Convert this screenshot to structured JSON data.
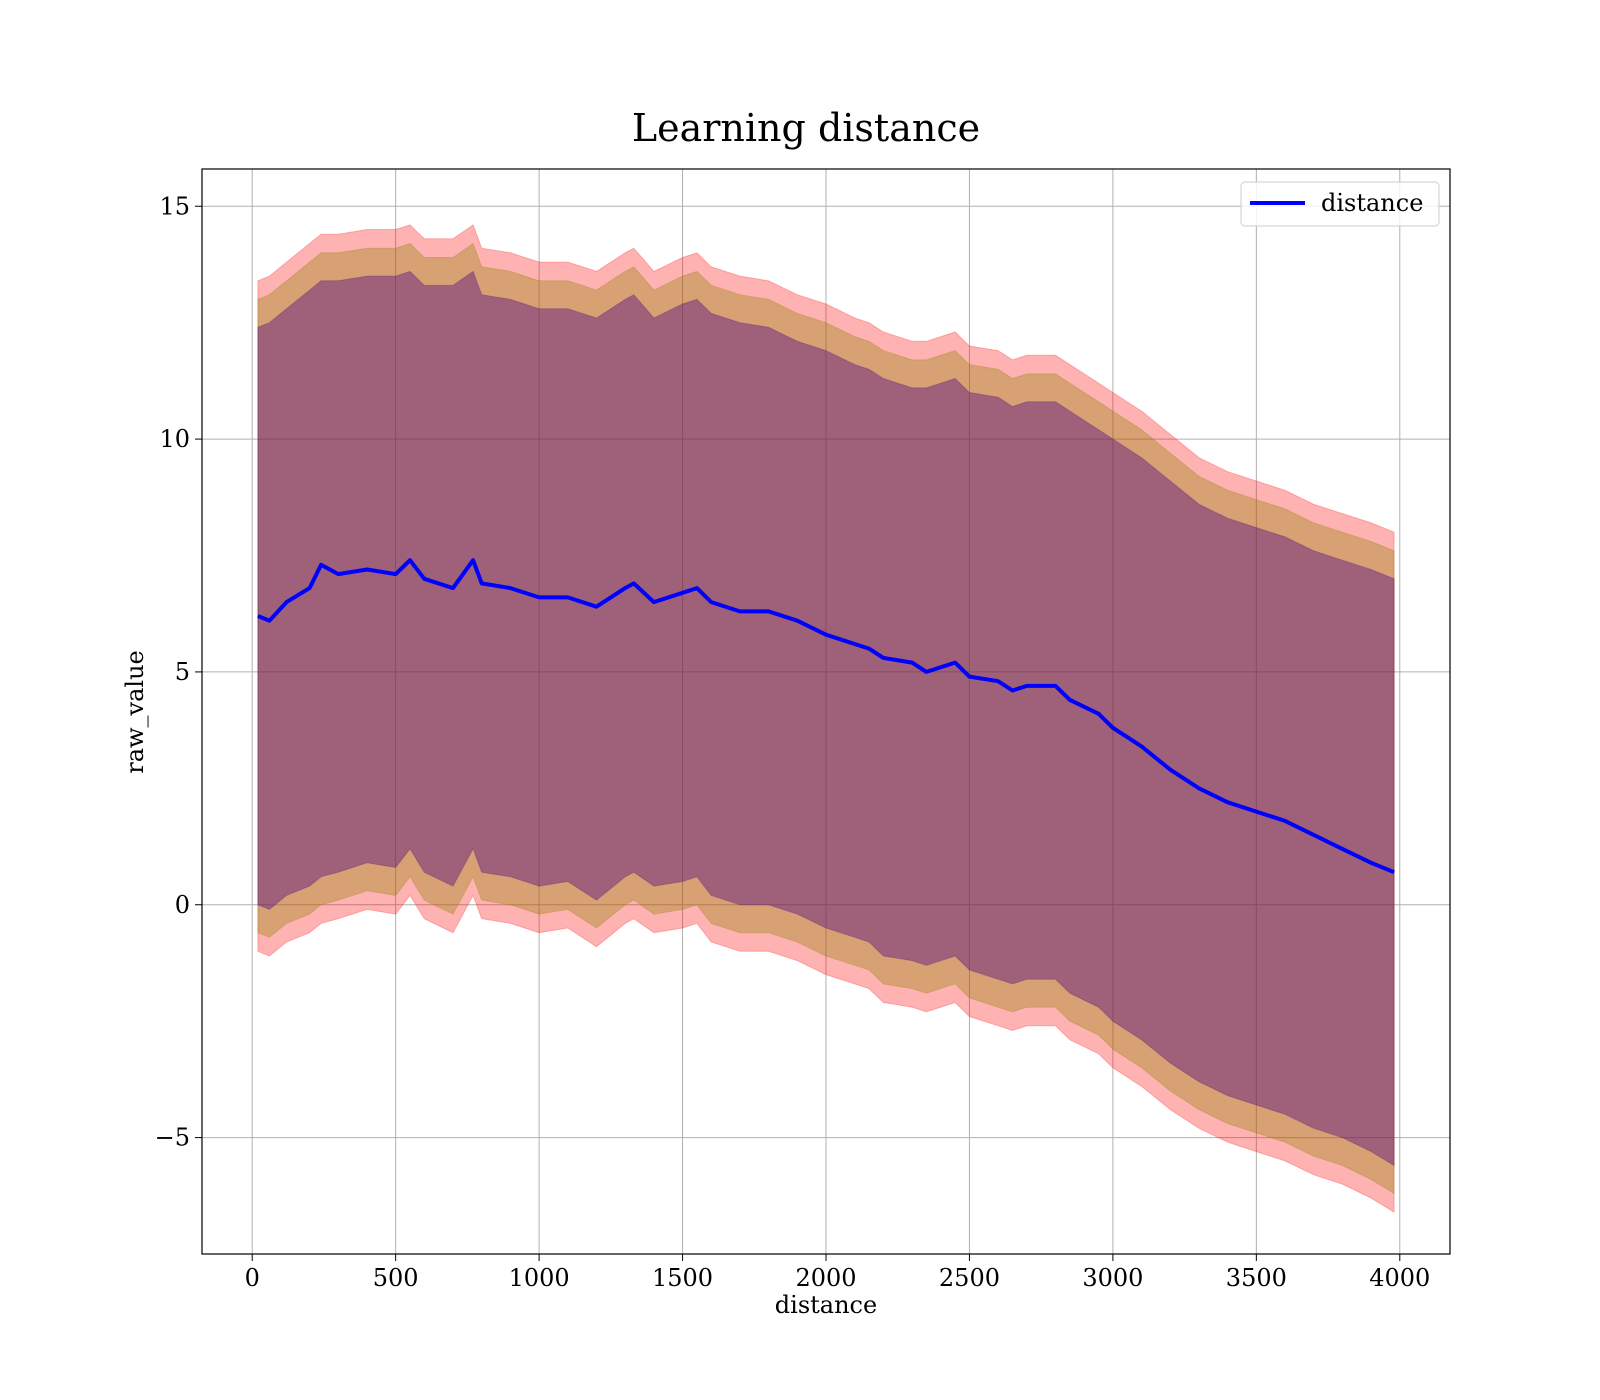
{
  "chart_data": {
    "type": "line",
    "title": "Learning distance",
    "xlabel": "distance",
    "ylabel": "raw_value",
    "xlim": [
      -175,
      4175
    ],
    "ylim": [
      -7.5,
      15.8
    ],
    "xticks": [
      0,
      500,
      1000,
      1500,
      2000,
      2500,
      3000,
      3500,
      4000
    ],
    "xtick_labels": [
      "0",
      "500",
      "1000",
      "1500",
      "2000",
      "2500",
      "3000",
      "3500",
      "4000"
    ],
    "yticks": [
      -5,
      0,
      5,
      10,
      15
    ],
    "ytick_labels": [
      "−5",
      "0",
      "5",
      "10",
      "15"
    ],
    "grid": true,
    "legend": {
      "position": "top-right",
      "entries": [
        "distance"
      ]
    },
    "colors": {
      "line": "#0000ff",
      "outer_band": "#ff0000",
      "middle_band": "#8b8000",
      "inner_band": "#4b0082"
    },
    "series": [
      {
        "name": "distance",
        "x": [
          20,
          60,
          120,
          200,
          240,
          300,
          400,
          500,
          550,
          600,
          700,
          770,
          800,
          900,
          1000,
          1100,
          1200,
          1300,
          1330,
          1400,
          1500,
          1550,
          1600,
          1700,
          1800,
          1900,
          2000,
          2100,
          2150,
          2200,
          2300,
          2350,
          2450,
          2500,
          2600,
          2650,
          2700,
          2800,
          2850,
          2950,
          3000,
          3100,
          3200,
          3300,
          3400,
          3500,
          3600,
          3700,
          3800,
          3900,
          3980
        ],
        "y": [
          6.2,
          6.1,
          6.5,
          6.8,
          7.3,
          7.1,
          7.2,
          7.1,
          7.4,
          7.0,
          6.8,
          7.4,
          6.9,
          6.8,
          6.6,
          6.6,
          6.4,
          6.8,
          6.9,
          6.5,
          6.7,
          6.8,
          6.5,
          6.3,
          6.3,
          6.1,
          5.8,
          5.6,
          5.5,
          5.3,
          5.2,
          5.0,
          5.2,
          4.9,
          4.8,
          4.6,
          4.7,
          4.7,
          4.4,
          4.1,
          3.8,
          3.4,
          2.9,
          2.5,
          2.2,
          2.0,
          1.8,
          1.5,
          1.2,
          0.9,
          0.7
        ]
      }
    ],
    "bands": [
      {
        "name": "outer",
        "upper": [
          13.4,
          13.5,
          13.8,
          14.2,
          14.4,
          14.4,
          14.5,
          14.5,
          14.6,
          14.3,
          14.3,
          14.6,
          14.1,
          14.0,
          13.8,
          13.8,
          13.6,
          14.0,
          14.1,
          13.6,
          13.9,
          14.0,
          13.7,
          13.5,
          13.4,
          13.1,
          12.9,
          12.6,
          12.5,
          12.3,
          12.1,
          12.1,
          12.3,
          12.0,
          11.9,
          11.7,
          11.8,
          11.8,
          11.6,
          11.2,
          11.0,
          10.6,
          10.1,
          9.6,
          9.3,
          9.1,
          8.9,
          8.6,
          8.4,
          8.2,
          8.0
        ],
        "lower": [
          -1.0,
          -1.1,
          -0.8,
          -0.6,
          -0.4,
          -0.3,
          -0.1,
          -0.2,
          0.2,
          -0.3,
          -0.6,
          0.2,
          -0.3,
          -0.4,
          -0.6,
          -0.5,
          -0.9,
          -0.4,
          -0.3,
          -0.6,
          -0.5,
          -0.4,
          -0.8,
          -1.0,
          -1.0,
          -1.2,
          -1.5,
          -1.7,
          -1.8,
          -2.1,
          -2.2,
          -2.3,
          -2.1,
          -2.4,
          -2.6,
          -2.7,
          -2.6,
          -2.6,
          -2.9,
          -3.2,
          -3.5,
          -3.9,
          -4.4,
          -4.8,
          -5.1,
          -5.3,
          -5.5,
          -5.8,
          -6.0,
          -6.3,
          -6.6
        ]
      },
      {
        "name": "middle",
        "upper": [
          13.0,
          13.1,
          13.4,
          13.8,
          14.0,
          14.0,
          14.1,
          14.1,
          14.2,
          13.9,
          13.9,
          14.2,
          13.7,
          13.6,
          13.4,
          13.4,
          13.2,
          13.6,
          13.7,
          13.2,
          13.5,
          13.6,
          13.3,
          13.1,
          13.0,
          12.7,
          12.5,
          12.2,
          12.1,
          11.9,
          11.7,
          11.7,
          11.9,
          11.6,
          11.5,
          11.3,
          11.4,
          11.4,
          11.2,
          10.8,
          10.6,
          10.2,
          9.7,
          9.2,
          8.9,
          8.7,
          8.5,
          8.2,
          8.0,
          7.8,
          7.6
        ],
        "lower": [
          -0.6,
          -0.7,
          -0.4,
          -0.2,
          0.0,
          0.1,
          0.3,
          0.2,
          0.6,
          0.1,
          -0.2,
          0.6,
          0.1,
          0.0,
          -0.2,
          -0.1,
          -0.5,
          0.0,
          0.1,
          -0.2,
          -0.1,
          0.0,
          -0.4,
          -0.6,
          -0.6,
          -0.8,
          -1.1,
          -1.3,
          -1.4,
          -1.7,
          -1.8,
          -1.9,
          -1.7,
          -2.0,
          -2.2,
          -2.3,
          -2.2,
          -2.2,
          -2.5,
          -2.8,
          -3.1,
          -3.5,
          -4.0,
          -4.4,
          -4.7,
          -4.9,
          -5.1,
          -5.4,
          -5.6,
          -5.9,
          -6.2
        ]
      },
      {
        "name": "inner",
        "upper": [
          12.4,
          12.5,
          12.8,
          13.2,
          13.4,
          13.4,
          13.5,
          13.5,
          13.6,
          13.3,
          13.3,
          13.6,
          13.1,
          13.0,
          12.8,
          12.8,
          12.6,
          13.0,
          13.1,
          12.6,
          12.9,
          13.0,
          12.7,
          12.5,
          12.4,
          12.1,
          11.9,
          11.6,
          11.5,
          11.3,
          11.1,
          11.1,
          11.3,
          11.0,
          10.9,
          10.7,
          10.8,
          10.8,
          10.6,
          10.2,
          10.0,
          9.6,
          9.1,
          8.6,
          8.3,
          8.1,
          7.9,
          7.6,
          7.4,
          7.2,
          7.0
        ],
        "lower": [
          0.0,
          -0.1,
          0.2,
          0.4,
          0.6,
          0.7,
          0.9,
          0.8,
          1.2,
          0.7,
          0.4,
          1.2,
          0.7,
          0.6,
          0.4,
          0.5,
          0.1,
          0.6,
          0.7,
          0.4,
          0.5,
          0.6,
          0.2,
          0.0,
          0.0,
          -0.2,
          -0.5,
          -0.7,
          -0.8,
          -1.1,
          -1.2,
          -1.3,
          -1.1,
          -1.4,
          -1.6,
          -1.7,
          -1.6,
          -1.6,
          -1.9,
          -2.2,
          -2.5,
          -2.9,
          -3.4,
          -3.8,
          -4.1,
          -4.3,
          -4.5,
          -4.8,
          -5.0,
          -5.3,
          -5.6
        ]
      }
    ]
  }
}
